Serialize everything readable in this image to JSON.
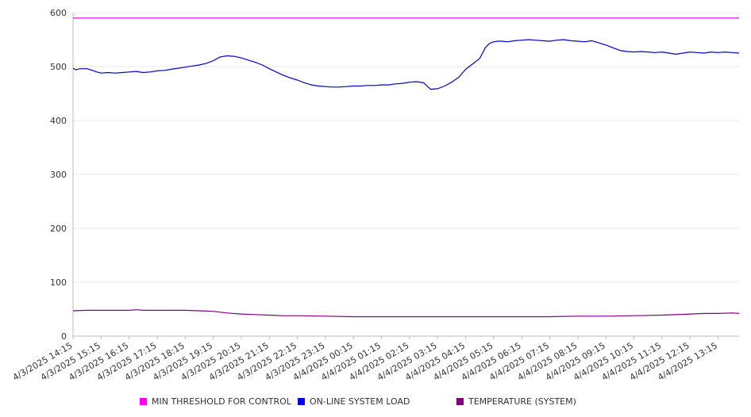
{
  "chart_data": {
    "type": "line",
    "title": "",
    "xlabel": "",
    "ylabel": "",
    "ylim": [
      0,
      600
    ],
    "y_ticks": [
      0,
      100,
      200,
      300,
      400,
      500,
      600
    ],
    "grid": true,
    "legend_position": "bottom",
    "x_tick_labels": [
      "4/3/2025 14:15",
      "4/3/2025 15:15",
      "4/3/2025 16:15",
      "4/3/2025 17:15",
      "4/3/2025 18:15",
      "4/3/2025 19:15",
      "4/3/2025 20:15",
      "4/3/2025 21:15",
      "4/3/2025 22:15",
      "4/3/2025 23:15",
      "4/4/2025 00:15",
      "4/4/2025 01:15",
      "4/4/2025 02:15",
      "4/4/2025 03:15",
      "4/4/2025 04:15",
      "4/4/2025 05:15",
      "4/4/2025 06:15",
      "4/4/2025 07:15",
      "4/4/2025 08:15",
      "4/4/2025 09:15",
      "4/4/2025 10:15",
      "4/4/2025 11:15",
      "4/4/2025 12:15",
      "4/4/2025 13:15"
    ],
    "x_range_hours": [
      0,
      23.75
    ],
    "series": [
      {
        "name": "MIN THRESHOLD FOR CONTROL",
        "color": "#cc00cc",
        "swatch_color": "#ff00ff",
        "x": [
          0,
          23.75
        ],
        "values": [
          590,
          590
        ]
      },
      {
        "name": "ON-LINE SYSTEM LOAD",
        "color": "#0000cc",
        "swatch_color": "#0000ff",
        "x": [
          0,
          0.1,
          0.25,
          0.5,
          0.75,
          0.85,
          1.0,
          1.25,
          1.5,
          1.75,
          2.0,
          2.25,
          2.5,
          2.75,
          3.0,
          3.25,
          3.5,
          3.75,
          4.0,
          4.25,
          4.5,
          4.75,
          5.0,
          5.25,
          5.5,
          5.75,
          6.0,
          6.25,
          6.5,
          6.75,
          7.0,
          7.25,
          7.5,
          7.75,
          8.0,
          8.25,
          8.5,
          8.75,
          9.0,
          9.25,
          9.5,
          9.75,
          10.0,
          10.25,
          10.5,
          10.75,
          11.0,
          11.25,
          11.5,
          11.75,
          12.0,
          12.25,
          12.5,
          12.75,
          13.0,
          13.25,
          13.5,
          13.75,
          14.0,
          14.25,
          14.5,
          14.6,
          14.7,
          14.85,
          15.0,
          15.15,
          15.3,
          15.5,
          15.75,
          16.0,
          16.25,
          16.5,
          16.75,
          17.0,
          17.25,
          17.5,
          17.75,
          18.0,
          18.25,
          18.5,
          18.75,
          19.0,
          19.25,
          19.5,
          19.75,
          20.0,
          20.25,
          20.5,
          20.75,
          21.0,
          21.25,
          21.5,
          21.75,
          22.0,
          22.25,
          22.5,
          22.75,
          23.0,
          23.25,
          23.5,
          23.75
        ],
        "values": [
          497,
          494,
          496,
          496,
          492,
          490,
          488,
          489,
          488,
          489,
          490,
          491,
          489,
          490,
          492,
          493,
          495,
          497,
          499,
          501,
          503,
          506,
          511,
          518,
          520,
          519,
          516,
          512,
          508,
          503,
          496,
          490,
          484,
          479,
          475,
          470,
          466,
          464,
          463,
          462,
          462,
          463,
          464,
          464,
          465,
          465,
          466,
          466,
          468,
          469,
          471,
          472,
          470,
          458,
          459,
          464,
          471,
          480,
          495,
          505,
          515,
          525,
          535,
          543,
          546,
          547,
          547,
          546,
          548,
          549,
          550,
          549,
          548,
          547,
          549,
          550,
          548,
          547,
          546,
          548,
          544,
          540,
          535,
          530,
          528,
          527,
          528,
          527,
          526,
          527,
          525,
          523,
          525,
          527,
          526,
          525,
          527,
          526,
          527,
          526,
          525
        ]
      },
      {
        "name": "TEMPERATURE (SYSTEM)",
        "color": "#800080",
        "swatch_color": "#800080",
        "x": [
          0,
          0.5,
          1.0,
          1.5,
          2.0,
          2.25,
          2.5,
          3.0,
          3.5,
          4.0,
          4.5,
          5.0,
          5.5,
          6.0,
          6.5,
          7.0,
          7.5,
          8.0,
          9.0,
          10.0,
          11.0,
          12.0,
          13.0,
          14.0,
          15.0,
          16.0,
          17.0,
          18.0,
          19.0,
          20.0,
          21.0,
          22.0,
          22.5,
          23.0,
          23.5,
          23.75
        ],
        "values": [
          47,
          48,
          48,
          48,
          48,
          49,
          48,
          48,
          48,
          48,
          47,
          46,
          43,
          41,
          40,
          39,
          38,
          38,
          37,
          36,
          36,
          36,
          36,
          36,
          36,
          36,
          36,
          37,
          37,
          38,
          39,
          41,
          42,
          42,
          43,
          42
        ]
      }
    ]
  }
}
